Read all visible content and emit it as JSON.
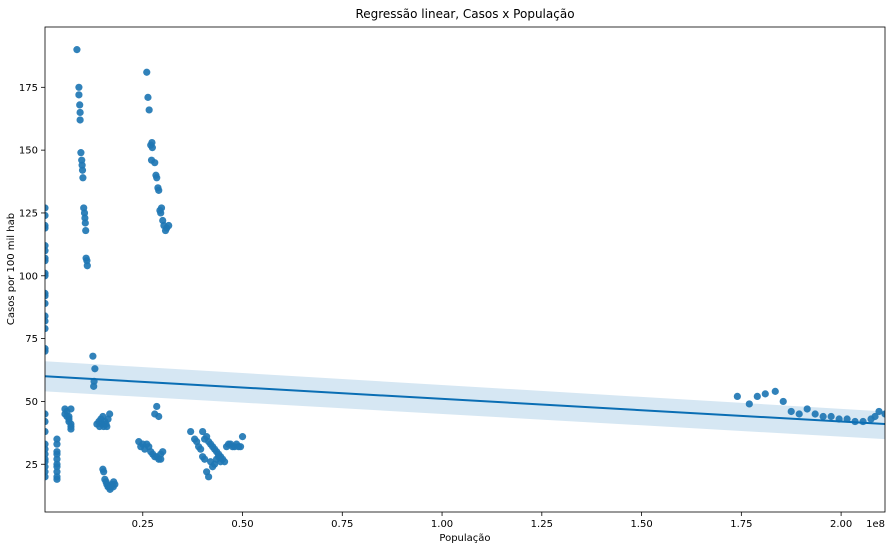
{
  "chart_data": {
    "type": "scatter",
    "title": "Regressão linear, Casos x População",
    "xlabel": "População",
    "ylabel": "Casos por 100 mil hab",
    "offset_text": "1e8",
    "xlim": [
      0.005,
      2.11
    ],
    "ylim": [
      6,
      199
    ],
    "x_ticks": [
      0.25,
      0.5,
      0.75,
      1.0,
      1.25,
      1.5,
      1.75,
      2.0
    ],
    "x_tick_labels": [
      "0.25",
      "0.50",
      "0.75",
      "1.00",
      "1.25",
      "1.50",
      "1.75",
      "2.00"
    ],
    "y_ticks": [
      25,
      50,
      75,
      100,
      125,
      150,
      175
    ],
    "y_tick_labels": [
      "25",
      "50",
      "75",
      "100",
      "125",
      "150",
      "175"
    ],
    "grid": false,
    "colors": {
      "points": "#1f77b4",
      "regression_line": "#0a6eb4",
      "confidence_band": "#cfe3f1"
    },
    "regression": {
      "x": [
        0.005,
        2.11
      ],
      "y": [
        60,
        41
      ],
      "ci_upper": [
        66,
        46
      ],
      "ci_lower": [
        54,
        35
      ]
    },
    "points": [
      [
        0.005,
        127
      ],
      [
        0.005,
        124
      ],
      [
        0.005,
        120
      ],
      [
        0.005,
        119
      ],
      [
        0.005,
        112
      ],
      [
        0.005,
        110
      ],
      [
        0.005,
        107
      ],
      [
        0.005,
        106
      ],
      [
        0.005,
        101
      ],
      [
        0.005,
        100
      ],
      [
        0.005,
        93
      ],
      [
        0.005,
        92
      ],
      [
        0.005,
        89
      ],
      [
        0.005,
        84
      ],
      [
        0.005,
        82
      ],
      [
        0.005,
        79
      ],
      [
        0.005,
        71
      ],
      [
        0.005,
        70
      ],
      [
        0.005,
        45
      ],
      [
        0.005,
        42
      ],
      [
        0.005,
        38
      ],
      [
        0.005,
        33
      ],
      [
        0.005,
        31
      ],
      [
        0.005,
        29
      ],
      [
        0.005,
        27
      ],
      [
        0.005,
        26
      ],
      [
        0.005,
        24
      ],
      [
        0.005,
        22
      ],
      [
        0.005,
        20
      ],
      [
        0.035,
        35
      ],
      [
        0.035,
        33
      ],
      [
        0.035,
        30
      ],
      [
        0.035,
        29
      ],
      [
        0.035,
        27
      ],
      [
        0.035,
        25
      ],
      [
        0.035,
        24
      ],
      [
        0.035,
        22
      ],
      [
        0.035,
        20
      ],
      [
        0.035,
        19
      ],
      [
        0.055,
        47
      ],
      [
        0.055,
        45
      ],
      [
        0.06,
        46
      ],
      [
        0.06,
        44
      ],
      [
        0.065,
        43
      ],
      [
        0.065,
        42
      ],
      [
        0.07,
        41
      ],
      [
        0.07,
        40
      ],
      [
        0.07,
        39
      ],
      [
        0.07,
        47
      ],
      [
        0.065,
        44
      ],
      [
        0.085,
        190
      ],
      [
        0.09,
        175
      ],
      [
        0.09,
        172
      ],
      [
        0.092,
        168
      ],
      [
        0.093,
        165
      ],
      [
        0.093,
        162
      ],
      [
        0.095,
        149
      ],
      [
        0.097,
        146
      ],
      [
        0.098,
        144
      ],
      [
        0.099,
        142
      ],
      [
        0.1,
        139
      ],
      [
        0.102,
        127
      ],
      [
        0.104,
        125
      ],
      [
        0.105,
        123
      ],
      [
        0.106,
        121
      ],
      [
        0.107,
        118
      ],
      [
        0.108,
        107
      ],
      [
        0.11,
        106
      ],
      [
        0.111,
        104
      ],
      [
        0.125,
        68
      ],
      [
        0.13,
        63
      ],
      [
        0.128,
        58
      ],
      [
        0.127,
        56
      ],
      [
        0.135,
        41
      ],
      [
        0.14,
        42
      ],
      [
        0.142,
        40
      ],
      [
        0.145,
        43
      ],
      [
        0.148,
        41
      ],
      [
        0.15,
        44
      ],
      [
        0.152,
        40
      ],
      [
        0.155,
        42
      ],
      [
        0.158,
        41
      ],
      [
        0.16,
        40
      ],
      [
        0.163,
        43
      ],
      [
        0.167,
        45
      ],
      [
        0.15,
        23
      ],
      [
        0.152,
        22
      ],
      [
        0.155,
        19
      ],
      [
        0.158,
        18
      ],
      [
        0.16,
        17
      ],
      [
        0.163,
        16
      ],
      [
        0.165,
        16
      ],
      [
        0.168,
        15
      ],
      [
        0.17,
        16
      ],
      [
        0.173,
        17
      ],
      [
        0.177,
        18
      ],
      [
        0.18,
        17
      ],
      [
        0.176,
        16
      ],
      [
        0.26,
        181
      ],
      [
        0.263,
        171
      ],
      [
        0.266,
        166
      ],
      [
        0.27,
        152
      ],
      [
        0.273,
        153
      ],
      [
        0.274,
        151
      ],
      [
        0.272,
        146
      ],
      [
        0.28,
        145
      ],
      [
        0.283,
        140
      ],
      [
        0.285,
        139
      ],
      [
        0.288,
        135
      ],
      [
        0.29,
        134
      ],
      [
        0.293,
        126
      ],
      [
        0.295,
        125
      ],
      [
        0.297,
        127
      ],
      [
        0.3,
        122
      ],
      [
        0.303,
        120
      ],
      [
        0.307,
        118
      ],
      [
        0.31,
        119
      ],
      [
        0.315,
        120
      ],
      [
        0.28,
        45
      ],
      [
        0.285,
        48
      ],
      [
        0.29,
        44
      ],
      [
        0.24,
        34
      ],
      [
        0.245,
        32
      ],
      [
        0.25,
        33
      ],
      [
        0.255,
        31
      ],
      [
        0.26,
        33
      ],
      [
        0.265,
        32
      ],
      [
        0.27,
        30
      ],
      [
        0.275,
        29
      ],
      [
        0.28,
        28
      ],
      [
        0.285,
        28
      ],
      [
        0.29,
        27
      ],
      [
        0.295,
        29
      ],
      [
        0.3,
        30
      ],
      [
        0.295,
        27
      ],
      [
        0.37,
        38
      ],
      [
        0.38,
        35
      ],
      [
        0.385,
        34
      ],
      [
        0.39,
        32
      ],
      [
        0.395,
        31
      ],
      [
        0.4,
        38
      ],
      [
        0.405,
        35
      ],
      [
        0.41,
        36
      ],
      [
        0.415,
        34
      ],
      [
        0.42,
        33
      ],
      [
        0.425,
        32
      ],
      [
        0.43,
        31
      ],
      [
        0.435,
        30
      ],
      [
        0.44,
        29
      ],
      [
        0.445,
        28
      ],
      [
        0.45,
        27
      ],
      [
        0.455,
        26
      ],
      [
        0.46,
        32
      ],
      [
        0.465,
        33
      ],
      [
        0.47,
        33
      ],
      [
        0.475,
        32
      ],
      [
        0.48,
        32
      ],
      [
        0.485,
        33
      ],
      [
        0.49,
        32
      ],
      [
        0.5,
        36
      ],
      [
        0.495,
        32
      ],
      [
        0.41,
        22
      ],
      [
        0.415,
        20
      ],
      [
        0.42,
        26
      ],
      [
        0.425,
        24
      ],
      [
        0.43,
        25
      ],
      [
        0.435,
        27
      ],
      [
        0.44,
        28
      ],
      [
        0.445,
        26
      ],
      [
        0.4,
        28
      ],
      [
        0.405,
        27
      ],
      [
        1.74,
        52
      ],
      [
        1.77,
        49
      ],
      [
        1.79,
        52
      ],
      [
        1.81,
        53
      ],
      [
        1.835,
        54
      ],
      [
        1.855,
        50
      ],
      [
        1.875,
        46
      ],
      [
        1.895,
        45
      ],
      [
        1.915,
        47
      ],
      [
        1.935,
        45
      ],
      [
        1.955,
        44
      ],
      [
        1.975,
        44
      ],
      [
        1.995,
        43
      ],
      [
        2.015,
        43
      ],
      [
        2.035,
        42
      ],
      [
        2.055,
        42
      ],
      [
        2.075,
        43
      ],
      [
        2.085,
        44
      ],
      [
        2.095,
        46
      ],
      [
        2.11,
        45
      ]
    ]
  }
}
